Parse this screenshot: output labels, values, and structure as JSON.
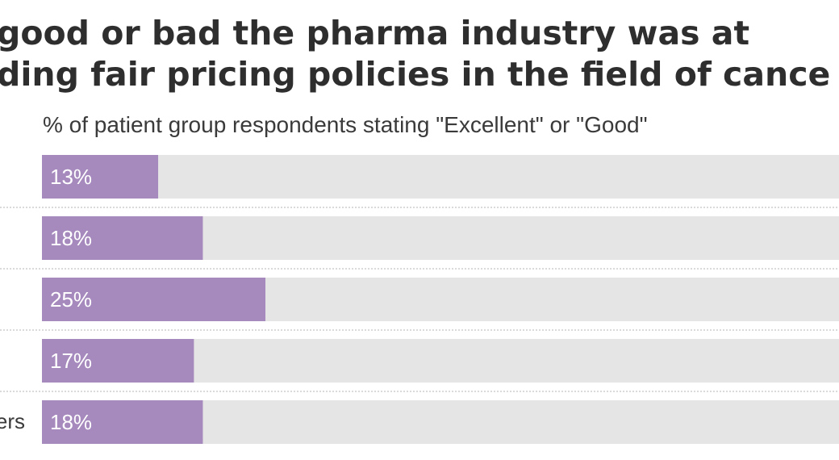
{
  "title_lines": [
    "good or bad the pharma industry was at",
    "ding fair pricing policies in the field of cance"
  ],
  "subtitle": "% of patient group respondents stating \"Excellent\" or \"Good\"",
  "colors": {
    "bar": "#a689bd",
    "track": "#e5e5e5",
    "divider": "#b5b5b5",
    "title": "#2e2e2e",
    "text": "#3a3a3a"
  },
  "chart_data": {
    "type": "bar",
    "orientation": "horizontal",
    "title": "",
    "subtitle": "% of patient group respondents stating \"Excellent\" or \"Good\"",
    "categories": [
      "",
      "",
      "",
      "",
      "ers"
    ],
    "values": [
      13,
      18,
      25,
      17,
      18
    ],
    "value_labels": [
      "13%",
      "18%",
      "25%",
      "17%",
      "18%"
    ],
    "xlim": [
      0,
      100
    ],
    "grid": false,
    "legend": "none"
  }
}
